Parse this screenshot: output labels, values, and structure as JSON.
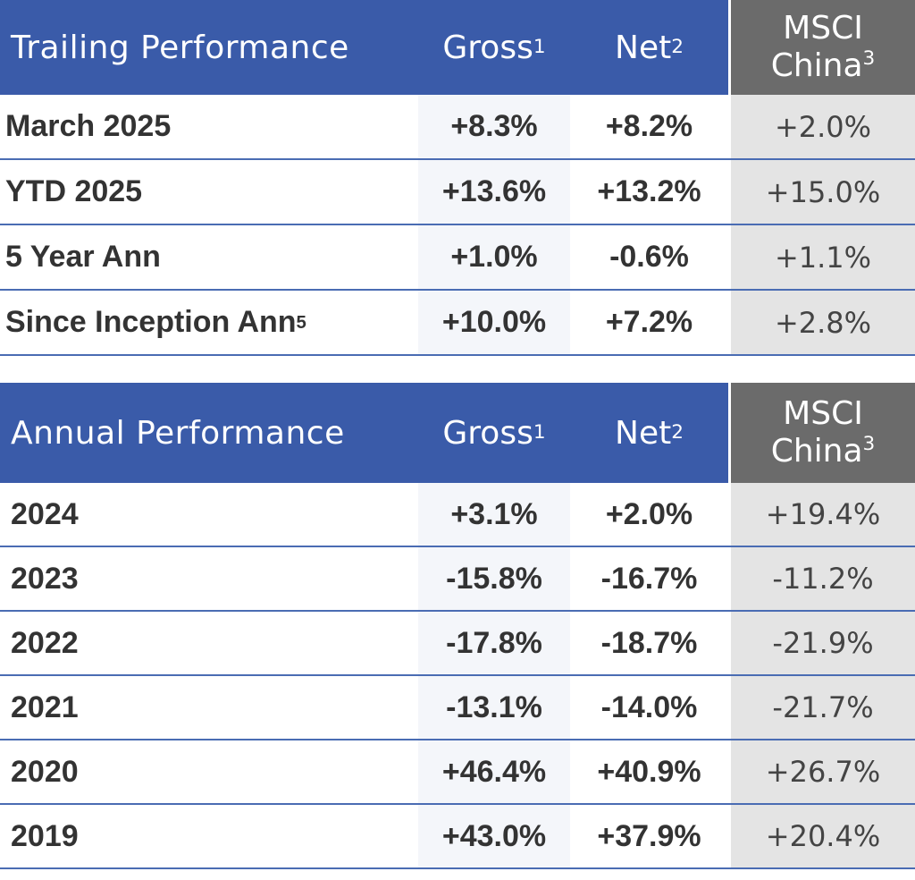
{
  "trailing": {
    "header": {
      "title": "Trailing Performance",
      "gross": "Gross",
      "gross_sup": "1",
      "net": "Net",
      "net_sup": "2",
      "msci_line1": "MSCI",
      "msci_line2": "China",
      "msci_sup": "3"
    },
    "rows": [
      {
        "label": "March 2025",
        "label_sup": "",
        "gross": "+8.3%",
        "net": "+8.2%",
        "msci": "+2.0%"
      },
      {
        "label": "YTD 2025",
        "label_sup": "",
        "gross": "+13.6%",
        "net": "+13.2%",
        "msci": "+15.0%"
      },
      {
        "label": "5 Year Ann",
        "label_sup": "",
        "gross": "+1.0%",
        "net": "-0.6%",
        "msci": "+1.1%"
      },
      {
        "label": "Since Inception Ann",
        "label_sup": "5",
        "gross": "+10.0%",
        "net": "+7.2%",
        "msci": "+2.8%"
      }
    ]
  },
  "annual": {
    "header": {
      "title": "Annual Performance",
      "gross": "Gross",
      "gross_sup": "1",
      "net": "Net",
      "net_sup": "2",
      "msci_line1": "MSCI",
      "msci_line2": "China",
      "msci_sup": "3"
    },
    "rows": [
      {
        "label": "2024",
        "gross": "+3.1%",
        "net": "+2.0%",
        "msci": "+19.4%"
      },
      {
        "label": "2023",
        "gross": "-15.8%",
        "net": "-16.7%",
        "msci": "-11.2%"
      },
      {
        "label": "2022",
        "gross": "-17.8%",
        "net": "-18.7%",
        "msci": "-21.9%"
      },
      {
        "label": "2021",
        "gross": "-13.1%",
        "net": "-14.0%",
        "msci": "-21.7%"
      },
      {
        "label": "2020",
        "gross": "+46.4%",
        "net": "+40.9%",
        "msci": "+26.7%"
      },
      {
        "label": "2019",
        "gross": "+43.0%",
        "net": "+37.9%",
        "msci": "+20.4%"
      }
    ]
  }
}
